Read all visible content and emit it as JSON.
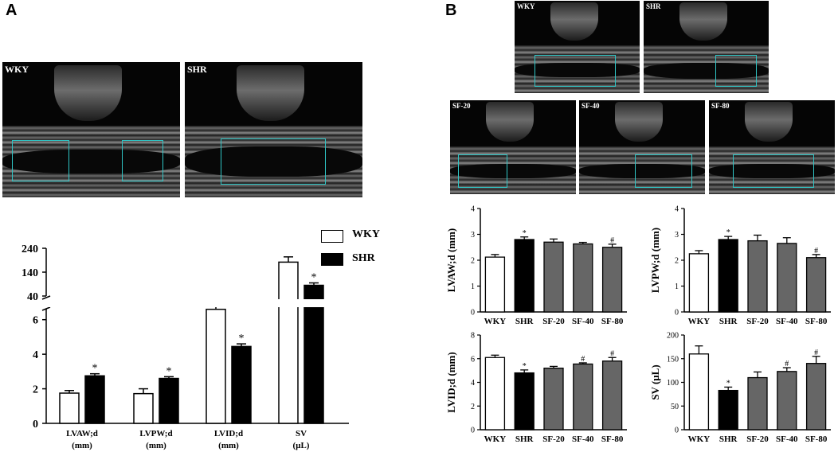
{
  "panels": {
    "a": {
      "letter": "A",
      "echo_labels": [
        "WKY",
        "SHR"
      ],
      "legend": [
        {
          "label": "WKY",
          "fill": "#ffffff"
        },
        {
          "label": "SHR",
          "fill": "#000000"
        }
      ]
    },
    "b": {
      "letter": "B",
      "echo_labels": [
        "WKY",
        "SHR",
        "SF-20",
        "SF-40",
        "SF-80"
      ]
    }
  },
  "chart_data": [
    {
      "id": "a-main",
      "type": "bar",
      "y_upper": {
        "range": [
          40,
          240
        ],
        "ticks": [
          "240",
          "140",
          "40"
        ]
      },
      "y_lower": {
        "range": [
          0,
          7
        ],
        "ticks": [
          "6",
          "4",
          "2",
          "0"
        ]
      },
      "categories": [
        [
          "LVAW;d",
          "(mm)"
        ],
        [
          "LVPW;d",
          "(mm)"
        ],
        [
          "LVID;d",
          "(mm)"
        ],
        [
          "SV",
          "(μL)"
        ]
      ],
      "series": [
        {
          "name": "WKY",
          "color": "#ffffff",
          "values": [
            1.75,
            1.72,
            6.6,
            182
          ],
          "errors": [
            0.15,
            0.28,
            0.35,
            22
          ]
        },
        {
          "name": "SHR",
          "color": "#000000",
          "values": [
            2.75,
            2.6,
            4.45,
            85
          ],
          "errors": [
            0.12,
            0.1,
            0.15,
            10
          ]
        }
      ],
      "significance": [
        [
          null,
          "*"
        ],
        [
          null,
          "*"
        ],
        [
          null,
          "*"
        ],
        [
          null,
          "*"
        ]
      ]
    },
    {
      "id": "b-lvaw",
      "type": "bar",
      "ylabel": "LVAW;d (mm)",
      "ylim": [
        0,
        4
      ],
      "ticks": [
        "0",
        "1",
        "2",
        "3",
        "4"
      ],
      "categories": [
        "WKY",
        "SHR",
        "SF-20",
        "SF-40",
        "SF-80"
      ],
      "values": [
        2.12,
        2.8,
        2.7,
        2.63,
        2.5
      ],
      "errors": [
        0.1,
        0.1,
        0.12,
        0.06,
        0.12
      ],
      "colors": [
        "#ffffff",
        "#000000",
        "#666666",
        "#666666",
        "#666666"
      ],
      "marks": [
        "",
        "*",
        "",
        "",
        "#"
      ]
    },
    {
      "id": "b-lvpw",
      "type": "bar",
      "ylabel": "LVPW;d (mm)",
      "ylim": [
        0,
        4
      ],
      "ticks": [
        "0",
        "1",
        "2",
        "3",
        "4"
      ],
      "categories": [
        "WKY",
        "SHR",
        "SF-20",
        "SF-40",
        "SF-80"
      ],
      "values": [
        2.25,
        2.8,
        2.75,
        2.65,
        2.1
      ],
      "errors": [
        0.12,
        0.12,
        0.22,
        0.22,
        0.12
      ],
      "colors": [
        "#ffffff",
        "#000000",
        "#666666",
        "#666666",
        "#666666"
      ],
      "marks": [
        "",
        "*",
        "",
        "",
        "#"
      ]
    },
    {
      "id": "b-lvid",
      "type": "bar",
      "ylabel": "LVID;d (mm)",
      "ylim": [
        0,
        8
      ],
      "ticks": [
        "0",
        "2",
        "4",
        "6",
        "8"
      ],
      "categories": [
        "WKY",
        "SHR",
        "SF-20",
        "SF-40",
        "SF-80"
      ],
      "values": [
        6.1,
        4.8,
        5.2,
        5.55,
        5.8
      ],
      "errors": [
        0.2,
        0.25,
        0.15,
        0.1,
        0.3
      ],
      "colors": [
        "#ffffff",
        "#000000",
        "#666666",
        "#666666",
        "#666666"
      ],
      "marks": [
        "",
        "*",
        "",
        "#",
        "#"
      ]
    },
    {
      "id": "b-sv",
      "type": "bar",
      "ylabel": "SV (μL)",
      "ylim": [
        0,
        200
      ],
      "ticks": [
        "0",
        "50",
        "100",
        "150",
        "200"
      ],
      "categories": [
        "WKY",
        "SHR",
        "SF-20",
        "SF-40",
        "SF-80"
      ],
      "values": [
        160,
        83,
        110,
        123,
        140
      ],
      "errors": [
        17,
        7,
        12,
        8,
        15
      ],
      "colors": [
        "#ffffff",
        "#000000",
        "#666666",
        "#666666",
        "#666666"
      ],
      "marks": [
        "",
        "*",
        "",
        "#",
        "#"
      ]
    }
  ]
}
